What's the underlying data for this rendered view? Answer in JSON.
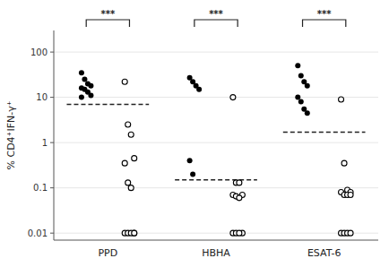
{
  "chart_data": {
    "type": "strip",
    "ylabel": "% CD4⁺IFN-γ⁺",
    "categories": [
      "PPD",
      "HBHA",
      "ESAT-6"
    ],
    "log": "y",
    "ylim": [
      0.007,
      300
    ],
    "yticks": [
      0.01,
      0.1,
      1,
      10,
      100
    ],
    "series": [
      {
        "marker": "filled",
        "color": "#000000",
        "values": [
          [
            35,
            25,
            20,
            18,
            16,
            15,
            13,
            11,
            10
          ],
          [
            27,
            22,
            18,
            15,
            0.4,
            0.2
          ],
          [
            50,
            30,
            22,
            18,
            10,
            8,
            5.5,
            4.5
          ]
        ]
      },
      {
        "marker": "open",
        "color": "#000000",
        "values": [
          [
            22,
            2.5,
            1.5,
            0.45,
            0.35,
            0.13,
            0.1,
            0.01,
            0.01,
            0.01,
            0.01,
            0.01
          ],
          [
            10,
            0.13,
            0.13,
            0.07,
            0.07,
            0.065,
            0.06,
            0.01,
            0.01,
            0.01,
            0.01
          ],
          [
            9,
            0.35,
            0.09,
            0.08,
            0.08,
            0.07,
            0.07,
            0.07,
            0.01,
            0.01,
            0.01,
            0.01
          ]
        ]
      }
    ],
    "medians": [
      7.0,
      0.15,
      1.7
    ],
    "annotations": [
      "***",
      "***",
      "***"
    ]
  }
}
